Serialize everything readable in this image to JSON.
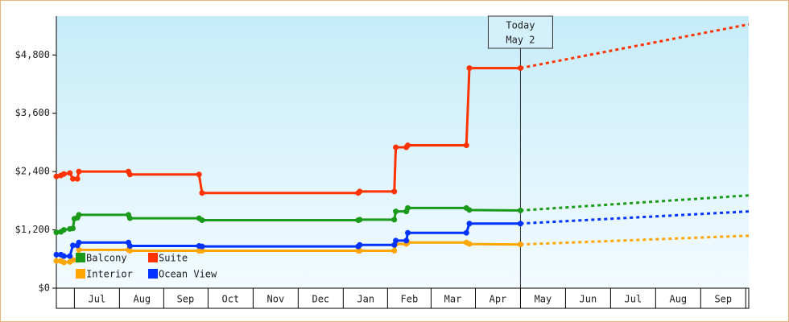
{
  "chart_data": {
    "type": "line",
    "xlim": [
      0,
      461
    ],
    "xticks": [
      {
        "value": 27,
        "label": "Jul"
      },
      {
        "value": 57,
        "label": "Aug"
      },
      {
        "value": 86,
        "label": "Sep"
      },
      {
        "value": 116,
        "label": "Oct"
      },
      {
        "value": 146,
        "label": "Nov"
      },
      {
        "value": 176,
        "label": "Dec"
      },
      {
        "value": 206,
        "label": "Jan"
      },
      {
        "value": 235,
        "label": "Feb"
      },
      {
        "value": 264,
        "label": "Mar"
      },
      {
        "value": 294,
        "label": "Apr"
      },
      {
        "value": 324,
        "label": "May"
      },
      {
        "value": 354,
        "label": "Jun"
      },
      {
        "value": 384,
        "label": "Jul"
      },
      {
        "value": 414,
        "label": "Aug"
      },
      {
        "value": 444,
        "label": "Sep"
      }
    ],
    "ylim": [
      0,
      5600
    ],
    "yticks": [
      {
        "value": 0,
        "label": "$0"
      },
      {
        "value": 1200,
        "label": "$1,200"
      },
      {
        "value": 2400,
        "label": "$2,400"
      },
      {
        "value": 3600,
        "label": "$3,600"
      },
      {
        "value": 4800,
        "label": "$4,800"
      }
    ],
    "today": {
      "x": 309,
      "label": [
        "Today",
        "May 2"
      ]
    },
    "legend": "lower left",
    "series": [
      {
        "name": "Balcony",
        "color": "#1a9a1a",
        "x": [
          0,
          3,
          5,
          9,
          11,
          12,
          14,
          15,
          48,
          49,
          95,
          97,
          201,
          202,
          225,
          226,
          233,
          234,
          273,
          275,
          309
        ],
        "values": [
          1150,
          1160,
          1200,
          1220,
          1230,
          1430,
          1450,
          1510,
          1510,
          1440,
          1440,
          1400,
          1400,
          1410,
          1410,
          1580,
          1580,
          1650,
          1650,
          1610,
          1600
        ],
        "projection": {
          "x": [
            309,
            461
          ],
          "values": [
            1600,
            1910
          ]
        }
      },
      {
        "name": "Suite",
        "color": "#ff3300",
        "x": [
          0,
          3,
          5,
          9,
          11,
          14,
          15,
          48,
          49,
          95,
          97,
          201,
          202,
          225,
          226,
          233,
          234,
          273,
          275,
          309
        ],
        "values": [
          2300,
          2320,
          2350,
          2370,
          2250,
          2250,
          2400,
          2400,
          2340,
          2340,
          1960,
          1960,
          1990,
          1990,
          2900,
          2900,
          2940,
          2940,
          4530,
          4530
        ],
        "projection": {
          "x": [
            309,
            461
          ],
          "values": [
            4530,
            5430
          ]
        }
      },
      {
        "name": "Interior",
        "color": "#ffa500",
        "x": [
          0,
          3,
          5,
          9,
          11,
          14,
          15,
          48,
          49,
          95,
          97,
          201,
          202,
          225,
          226,
          233,
          234,
          273,
          275,
          309
        ],
        "values": [
          560,
          560,
          530,
          540,
          580,
          580,
          790,
          790,
          770,
          770,
          770,
          770,
          770,
          770,
          910,
          910,
          940,
          940,
          910,
          900
        ],
        "projection": {
          "x": [
            309,
            461
          ],
          "values": [
            900,
            1080
          ]
        }
      },
      {
        "name": "Ocean View",
        "color": "#0033ff",
        "x": [
          0,
          3,
          5,
          9,
          11,
          14,
          15,
          48,
          49,
          95,
          97,
          201,
          202,
          225,
          226,
          233,
          234,
          273,
          275,
          309
        ],
        "values": [
          690,
          690,
          660,
          660,
          880,
          880,
          940,
          940,
          870,
          870,
          860,
          860,
          890,
          890,
          980,
          980,
          1140,
          1140,
          1330,
          1330
        ],
        "projection": {
          "x": [
            309,
            461
          ],
          "values": [
            1330,
            1580
          ]
        }
      }
    ]
  }
}
